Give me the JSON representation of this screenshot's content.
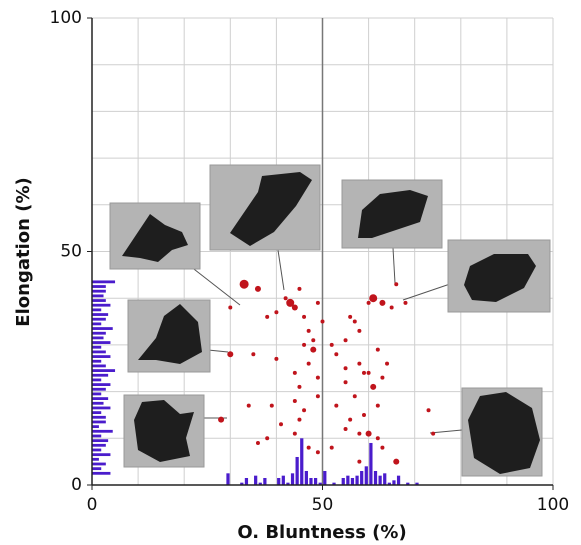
{
  "chart_data": {
    "type": "scatter",
    "x_label": "O. Bluntness (%)",
    "y_label": "Elongation (%)",
    "xlim": [
      0,
      100
    ],
    "ylim": [
      0,
      100
    ],
    "xticks": [
      0,
      50,
      100
    ],
    "yticks": [
      0,
      50,
      100
    ],
    "xgrid": [
      10,
      20,
      30,
      40,
      60,
      70,
      80,
      90,
      100
    ],
    "ygrid": [
      10,
      20,
      30,
      40,
      50,
      60,
      70,
      80,
      90,
      100
    ],
    "divider": 50,
    "color": "#c0141c",
    "x": [
      33,
      30,
      36,
      38,
      40,
      42,
      43,
      44,
      45,
      46,
      47,
      48,
      46,
      48,
      47,
      44,
      45,
      49,
      40,
      35,
      30,
      28,
      34,
      39,
      44,
      46,
      49,
      45,
      41,
      38,
      36,
      44,
      47,
      49,
      52,
      50,
      49,
      56,
      57,
      58,
      55,
      53,
      55,
      58,
      59,
      60,
      61,
      63,
      62,
      59,
      55,
      56,
      60,
      58,
      62,
      63,
      66,
      58,
      53,
      52,
      61,
      63,
      60,
      66,
      68,
      65,
      62,
      64,
      73,
      74,
      57,
      55
    ],
    "values": [
      43,
      38,
      42,
      36,
      37,
      40,
      39,
      38,
      42,
      36,
      33,
      31,
      30,
      29,
      26,
      24,
      21,
      23,
      27,
      28,
      28,
      14,
      17,
      17,
      18,
      16,
      19,
      14,
      13,
      10,
      9,
      11,
      8,
      7,
      30,
      35,
      39,
      36,
      35,
      33,
      31,
      28,
      25,
      26,
      24,
      24,
      21,
      23,
      17,
      15,
      12,
      14,
      11,
      11,
      10,
      8,
      5,
      5,
      17,
      8,
      40,
      39,
      39,
      43,
      39,
      38,
      29,
      26,
      16,
      11,
      19,
      22
    ],
    "sizes": [
      4.5,
      2,
      3,
      2,
      2,
      2,
      4,
      3,
      2,
      2,
      2,
      2,
      2,
      3,
      2,
      2,
      2,
      2,
      2,
      2,
      3,
      3,
      2,
      2,
      2,
      2,
      2,
      2,
      2,
      2,
      2,
      2,
      2,
      2,
      2,
      2,
      2,
      2,
      2,
      2,
      2,
      2,
      2,
      2,
      2,
      2,
      3,
      2,
      2,
      2,
      2,
      2,
      3,
      2,
      2,
      2,
      3,
      2,
      2,
      2,
      4,
      3,
      2,
      2,
      2,
      2,
      2,
      2,
      2,
      2,
      2,
      2
    ],
    "hist_color": "#4a1ccc",
    "x_hist": {
      "bins": [
        29,
        30,
        31,
        32,
        33,
        34,
        35,
        36,
        37,
        38,
        39,
        40,
        41,
        42,
        43,
        44,
        45,
        46,
        47,
        48,
        49,
        50,
        51,
        52,
        53,
        54,
        55,
        56,
        57,
        58,
        59,
        60,
        61,
        62,
        63,
        64,
        65,
        66,
        67,
        68,
        69,
        70,
        71
      ],
      "counts": [
        2.5,
        0,
        0,
        0.5,
        1.5,
        0,
        2,
        0.5,
        1.5,
        0,
        0,
        1.5,
        2,
        0.5,
        2.5,
        6,
        10,
        3,
        1.5,
        1.5,
        0.5,
        3,
        0,
        0.5,
        0,
        1.5,
        2,
        1.5,
        2,
        3,
        4,
        9,
        3,
        2,
        2.5,
        0.5,
        1,
        2,
        0,
        0.5,
        0,
        0.5
      ]
    },
    "y_hist": {
      "bins": [
        2,
        3,
        4,
        5,
        6,
        7,
        8,
        9,
        10,
        11,
        12,
        13,
        14,
        15,
        16,
        17,
        18,
        19,
        20,
        21,
        22,
        23,
        24,
        25,
        26,
        27,
        28,
        29,
        30,
        31,
        32,
        33,
        34,
        35,
        36,
        37,
        38,
        39,
        40,
        41,
        42,
        43,
        44
      ],
      "counts": [
        4,
        2,
        3,
        1.5,
        4,
        2,
        3,
        3.5,
        2,
        4.5,
        1.5,
        3,
        3,
        2,
        4,
        2.5,
        3.5,
        2,
        3,
        4,
        2,
        3.5,
        5,
        3,
        2,
        4,
        3,
        2,
        4,
        2.5,
        3,
        4.5,
        2,
        3,
        3.5,
        2,
        4,
        3,
        2.5,
        3,
        3,
        5
      ]
    }
  }
}
